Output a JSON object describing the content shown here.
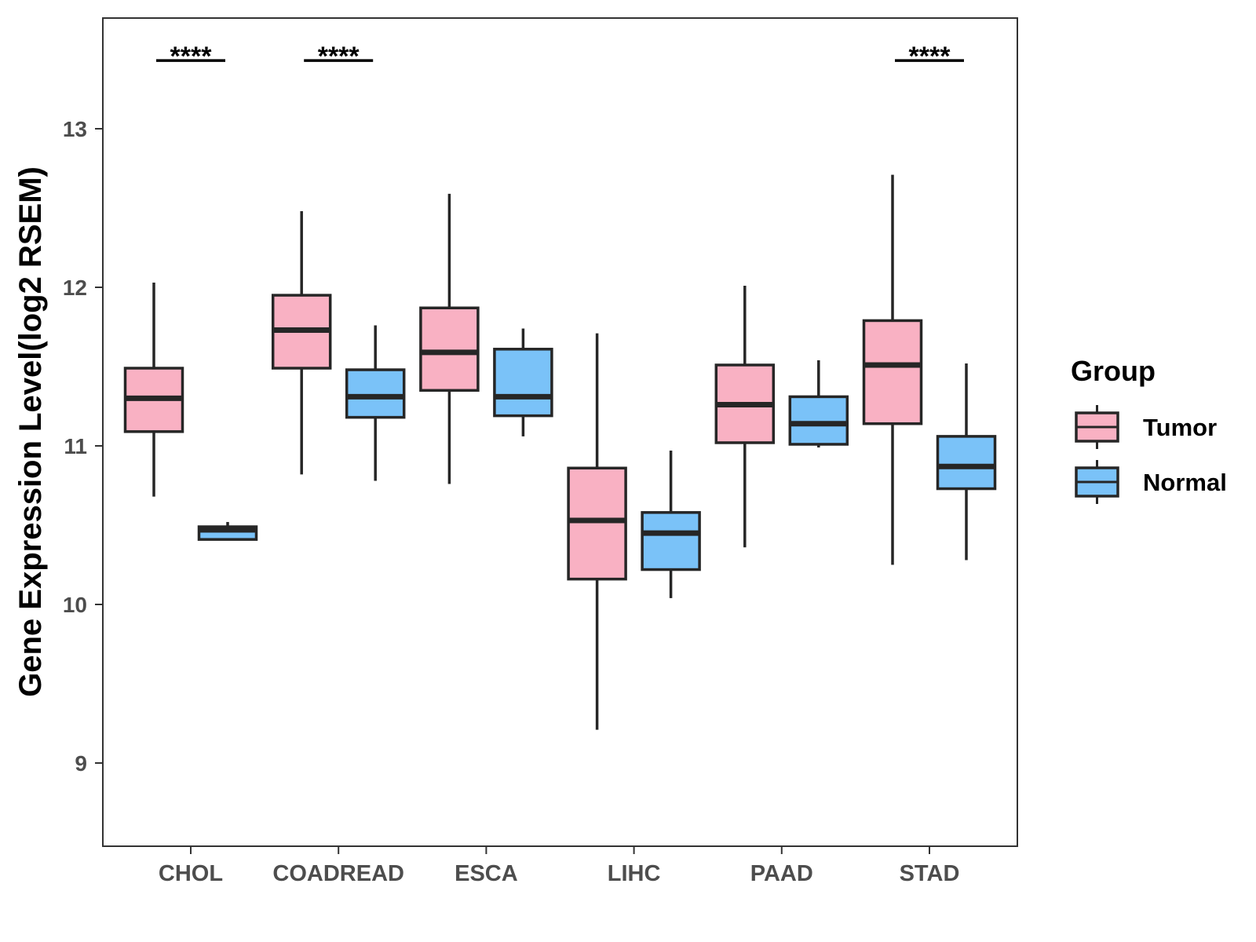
{
  "chart_data": {
    "type": "boxplot",
    "title": "",
    "xlabel": "",
    "ylabel": "Gene Expression Level(log2 RSEM)",
    "ylim": [
      8.5,
      13.65
    ],
    "yticks": [
      9,
      10,
      11,
      12,
      13
    ],
    "grid": false,
    "legend_position": "right",
    "legend": {
      "title": "Group",
      "items": [
        {
          "name": "Tumor",
          "color": "#F9B1C3"
        },
        {
          "name": "Normal",
          "color": "#7AC2F8"
        }
      ]
    },
    "categories": [
      "CHOL",
      "COADREAD",
      "ESCA",
      "LIHC",
      "PAAD",
      "STAD"
    ],
    "series": [
      {
        "name": "Tumor",
        "color": "#F9B1C3",
        "boxes": [
          {
            "min": 10.68,
            "q1": 11.09,
            "median": 11.3,
            "q3": 11.49,
            "max": 12.03
          },
          {
            "min": 10.82,
            "q1": 11.49,
            "median": 11.73,
            "q3": 11.95,
            "max": 12.48
          },
          {
            "min": 10.76,
            "q1": 11.35,
            "median": 11.59,
            "q3": 11.87,
            "max": 12.59
          },
          {
            "min": 9.21,
            "q1": 10.16,
            "median": 10.53,
            "q3": 10.86,
            "max": 11.71
          },
          {
            "min": 10.36,
            "q1": 11.02,
            "median": 11.26,
            "q3": 11.51,
            "max": 12.01
          },
          {
            "min": 10.25,
            "q1": 11.14,
            "median": 11.51,
            "q3": 11.79,
            "max": 12.71
          }
        ]
      },
      {
        "name": "Normal",
        "color": "#7AC2F8",
        "boxes": [
          {
            "min": 10.41,
            "q1": 10.41,
            "median": 10.47,
            "q3": 10.49,
            "max": 10.52
          },
          {
            "min": 10.78,
            "q1": 11.18,
            "median": 11.31,
            "q3": 11.48,
            "max": 11.76
          },
          {
            "min": 11.06,
            "q1": 11.19,
            "median": 11.31,
            "q3": 11.61,
            "max": 11.74
          },
          {
            "min": 10.04,
            "q1": 10.22,
            "median": 10.45,
            "q3": 10.58,
            "max": 10.97
          },
          {
            "min": 10.99,
            "q1": 11.01,
            "median": 11.14,
            "q3": 11.31,
            "max": 11.54
          },
          {
            "min": 10.28,
            "q1": 10.73,
            "median": 10.87,
            "q3": 11.06,
            "max": 11.52
          }
        ]
      }
    ],
    "significance": [
      {
        "category": "CHOL",
        "label": "****",
        "y": 13.43
      },
      {
        "category": "COADREAD",
        "label": "****",
        "y": 13.43
      },
      {
        "category": "STAD",
        "label": "****",
        "y": 13.43
      }
    ]
  }
}
